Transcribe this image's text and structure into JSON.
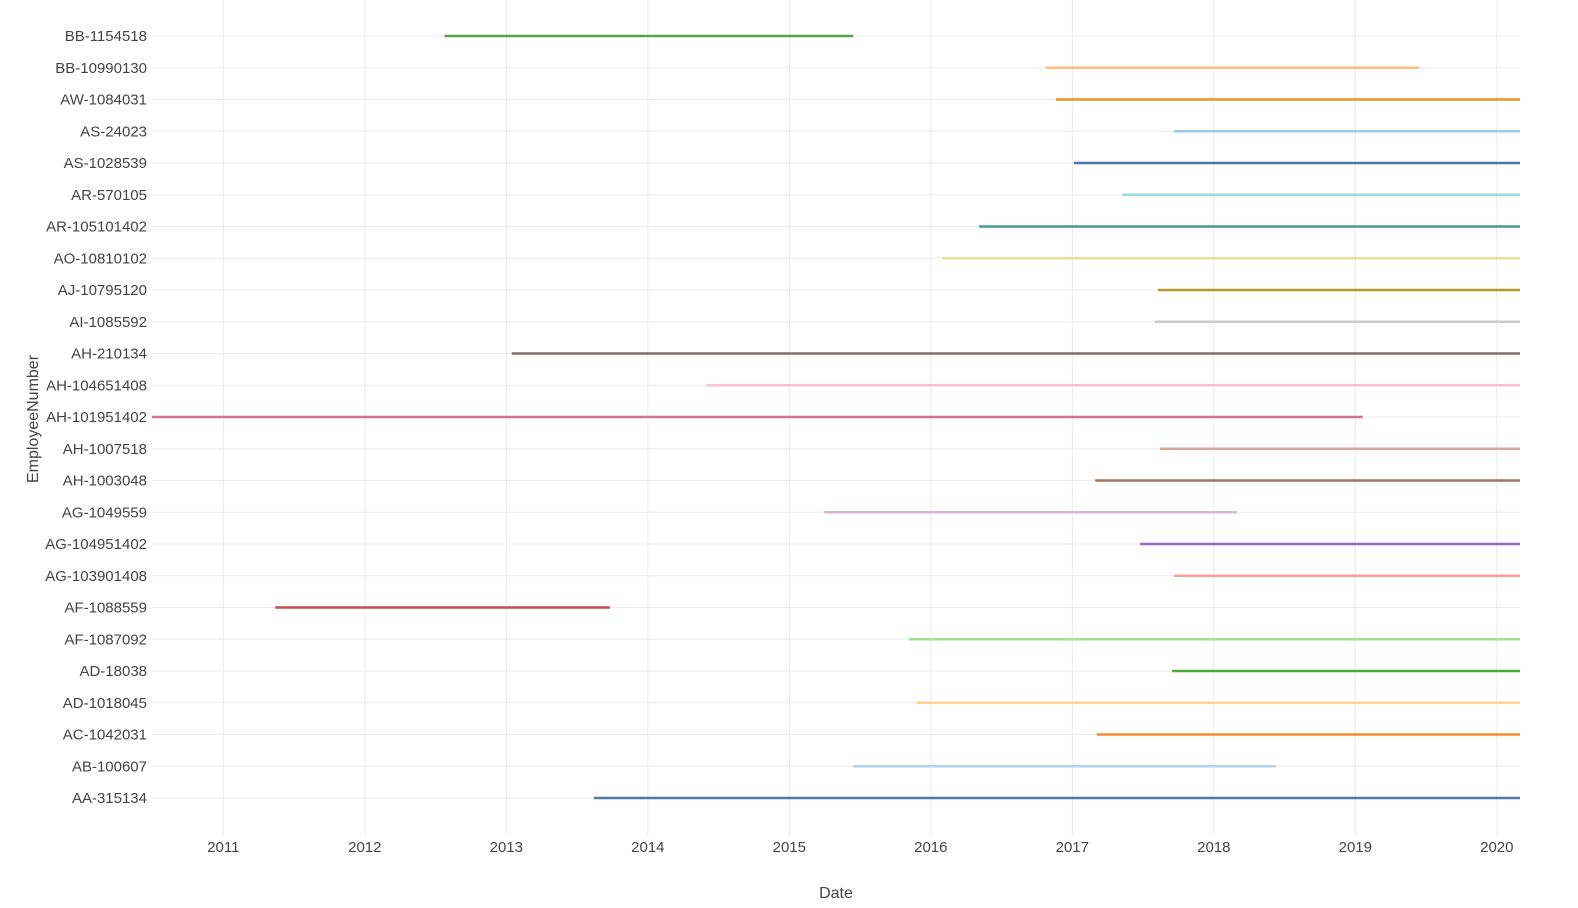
{
  "chart_data": {
    "type": "gantt",
    "xlabel": "Date",
    "ylabel": "EmployeeNumber",
    "xlim": [
      "2010-07-01",
      "2020-03-01"
    ],
    "x_ticks": [
      "2011",
      "2012",
      "2013",
      "2014",
      "2015",
      "2016",
      "2017",
      "2018",
      "2019",
      "2020"
    ],
    "grid": true,
    "legend": "none",
    "segments": [
      {
        "employee": "BB-1154518",
        "start": "2012-07-25",
        "end": "2015-06-15",
        "color": "#59a14f"
      },
      {
        "employee": "BB-10990130",
        "start": "2016-10-25",
        "end": "2019-06-15",
        "color": "#ffbe7d"
      },
      {
        "employee": "AW-1084031",
        "start": "2016-11-20",
        "end": "2020-03-01",
        "color": "#f28e2b"
      },
      {
        "employee": "AS-24023",
        "start": "2017-09-20",
        "end": "2020-03-01",
        "color": "#a0cbe8"
      },
      {
        "employee": "AS-1028539",
        "start": "2017-01-05",
        "end": "2020-03-01",
        "color": "#4e79a7"
      },
      {
        "employee": "AR-570105",
        "start": "2017-05-10",
        "end": "2020-03-01",
        "color": "#9ed8e6"
      },
      {
        "employee": "AR-105101402",
        "start": "2016-05-05",
        "end": "2020-03-01",
        "color": "#499894"
      },
      {
        "employee": "AO-10810102",
        "start": "2016-02-01",
        "end": "2020-03-01",
        "color": "#e8dc9c"
      },
      {
        "employee": "AJ-10795120",
        "start": "2017-08-10",
        "end": "2020-03-01",
        "color": "#b6992d"
      },
      {
        "employee": "AI-1085592",
        "start": "2017-08-01",
        "end": "2020-03-01",
        "color": "#cccccc"
      },
      {
        "employee": "AH-210134",
        "start": "2013-01-15",
        "end": "2020-03-01",
        "color": "#79706e"
      },
      {
        "employee": "AH-104651408",
        "start": "2014-06-01",
        "end": "2020-03-01",
        "color": "#fabfd2"
      },
      {
        "employee": "AH-101951402",
        "start": "2010-07-01",
        "end": "2019-01-20",
        "color": "#d37295"
      },
      {
        "employee": "AH-1007518",
        "start": "2017-08-15",
        "end": "2020-03-01",
        "color": "#d4a6a0"
      },
      {
        "employee": "AH-1003048",
        "start": "2017-03-01",
        "end": "2020-03-01",
        "color": "#9d7660"
      },
      {
        "employee": "AG-1049559",
        "start": "2015-04-01",
        "end": "2018-03-01",
        "color": "#d4b8d6"
      },
      {
        "employee": "AG-104951402",
        "start": "2017-06-25",
        "end": "2020-03-01",
        "color": "#8c6bc2"
      },
      {
        "employee": "AG-103901408",
        "start": "2017-09-20",
        "end": "2020-03-01",
        "color": "#ff9d9a"
      },
      {
        "employee": "AF-1088559",
        "start": "2011-05-15",
        "end": "2013-09-25",
        "color": "#c44e52"
      },
      {
        "employee": "AF-1087092",
        "start": "2015-11-05",
        "end": "2020-03-01",
        "color": "#a6e090"
      },
      {
        "employee": "AD-18038",
        "start": "2017-09-15",
        "end": "2020-03-01",
        "color": "#4fa83d"
      },
      {
        "employee": "AD-1018045",
        "start": "2015-11-25",
        "end": "2020-03-01",
        "color": "#ffd28f"
      },
      {
        "employee": "AC-1042031",
        "start": "2017-03-05",
        "end": "2020-03-01",
        "color": "#f28e2b"
      },
      {
        "employee": "AB-100607",
        "start": "2015-06-15",
        "end": "2018-06-10",
        "color": "#b5d2e8"
      },
      {
        "employee": "AA-315134",
        "start": "2013-08-15",
        "end": "2020-03-01",
        "color": "#4e79a7"
      }
    ]
  }
}
